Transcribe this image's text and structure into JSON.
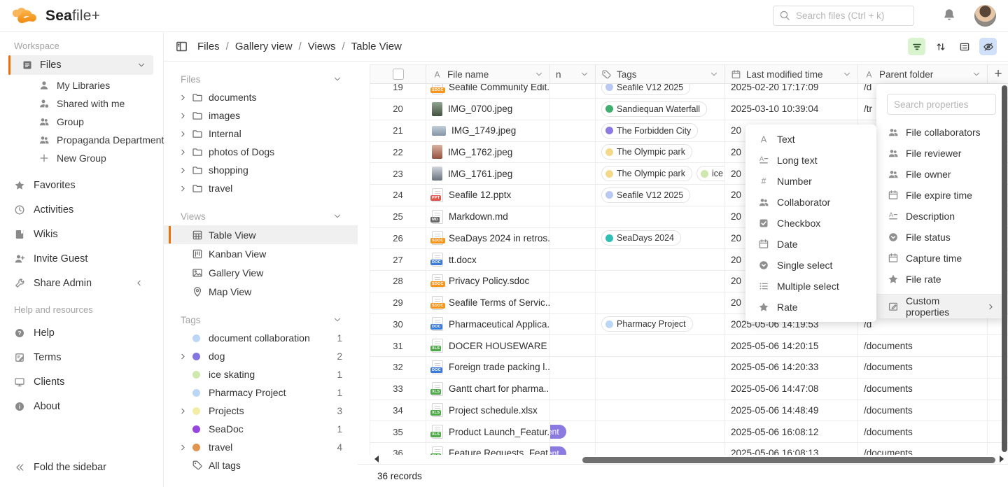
{
  "colors": {
    "accent": "#ED7109",
    "select_pill": "#8b7ae0",
    "filter_active_bg": "#d9f3cf",
    "eye_active_bg": "#cfe0f8"
  },
  "topbar": {
    "logo_bold": "Sea",
    "logo_rest": "file+",
    "search_placeholder": "Search files (Ctrl + k)"
  },
  "sidebar": {
    "workspace_label": "Workspace",
    "files_item": {
      "label": "Files"
    },
    "files_children": [
      {
        "label": "My Libraries",
        "icon": "person"
      },
      {
        "label": "Shared with me",
        "icon": "person-share"
      },
      {
        "label": "Group",
        "icon": "people"
      },
      {
        "label": "Propaganda Department",
        "icon": "people"
      },
      {
        "label": "New Group",
        "icon": "plus"
      }
    ],
    "nav_items": [
      {
        "label": "Favorites",
        "icon": "star"
      },
      {
        "label": "Activities",
        "icon": "clock"
      },
      {
        "label": "Wikis",
        "icon": "book"
      },
      {
        "label": "Invite Guest",
        "icon": "person-plus"
      },
      {
        "label": "Share Admin",
        "icon": "wrench",
        "collapse_chevron": true
      }
    ],
    "help_label": "Help and resources",
    "help_items": [
      {
        "label": "Help",
        "icon": "question"
      },
      {
        "label": "Terms",
        "icon": "terms"
      },
      {
        "label": "Clients",
        "icon": "monitor"
      },
      {
        "label": "About",
        "icon": "info"
      }
    ],
    "fold_label": "Fold the sidebar"
  },
  "breadcrumb": {
    "items": [
      "Files",
      "Gallery view",
      "Views",
      "Table View"
    ]
  },
  "tree_panel": {
    "files_section": "Files",
    "folders": [
      "documents",
      "images",
      "Internal",
      "photos of Dogs",
      "shopping",
      "travel"
    ],
    "views_section": "Views",
    "views": [
      {
        "label": "Table View",
        "icon": "table",
        "active": true
      },
      {
        "label": "Kanban View",
        "icon": "kanban",
        "active": false
      },
      {
        "label": "Gallery View",
        "icon": "gallery",
        "active": false
      },
      {
        "label": "Map View",
        "icon": "map-pin",
        "active": false
      }
    ],
    "tags_section": "Tags",
    "tags": [
      {
        "label": "document collaboration",
        "count": "1",
        "color": "#bcd7f5",
        "expandable": false
      },
      {
        "label": "dog",
        "count": "2",
        "color": "#8476e0",
        "expandable": true
      },
      {
        "label": "ice skating",
        "count": "1",
        "color": "#cfe8ad",
        "expandable": false
      },
      {
        "label": "Pharmacy Project",
        "count": "1",
        "color": "#bcd7f5",
        "expandable": false
      },
      {
        "label": "Projects",
        "count": "3",
        "color": "#f3eda6",
        "expandable": true
      },
      {
        "label": "SeaDoc",
        "count": "1",
        "color": "#9747e0",
        "expandable": false
      },
      {
        "label": "travel",
        "count": "4",
        "color": "#e2954f",
        "expandable": true
      }
    ],
    "all_tags_label": "All tags"
  },
  "table": {
    "columns": {
      "name": "File name",
      "n": "n",
      "tags": "Tags",
      "modified": "Last modified time",
      "parent": "Parent folder"
    },
    "rows": [
      {
        "num": "19",
        "name": "Seafile Community Edit...",
        "icon": "sdoc",
        "tags": [
          {
            "label": "Seafile V12 2025",
            "color": "#b9c9f2"
          }
        ],
        "select": "",
        "modified": "2025-02-20 17:17:09",
        "parent": "/d",
        "clip": "top"
      },
      {
        "num": "20",
        "name": "IMG_0700.jpeg",
        "icon": "img-waterfall",
        "tags": [
          {
            "label": "Sandiequan Waterfall",
            "color": "#3fae6e"
          }
        ],
        "select": "",
        "modified": "2025-03-10 10:39:04",
        "parent": "/tr",
        "clip": ""
      },
      {
        "num": "21",
        "name": "IMG_1749.jpeg",
        "icon": "img-landscape",
        "tags": [
          {
            "label": "The Forbidden City",
            "color": "#8b7ae0"
          }
        ],
        "select": "",
        "modified": "20",
        "parent": "",
        "clip": ""
      },
      {
        "num": "22",
        "name": "IMG_1762.jpeg",
        "icon": "img-person",
        "tags": [
          {
            "label": "The Olympic park",
            "color": "#f5d98b"
          }
        ],
        "select": "",
        "modified": "20",
        "parent": "",
        "clip": ""
      },
      {
        "num": "23",
        "name": "IMG_1761.jpeg",
        "icon": "img-ice",
        "tags": [
          {
            "label": "The Olympic park",
            "color": "#f5d98b"
          },
          {
            "label": "ice skating",
            "color": "#cfe8ad"
          }
        ],
        "select": "",
        "modified": "20",
        "parent": "",
        "clip": ""
      },
      {
        "num": "24",
        "name": "Seafile 12.pptx",
        "icon": "pptx",
        "tags": [
          {
            "label": "Seafile V12 2025",
            "color": "#b9c9f2"
          }
        ],
        "select": "",
        "modified": "20",
        "parent": "",
        "clip": ""
      },
      {
        "num": "25",
        "name": "Markdown.md",
        "icon": "md",
        "tags": [],
        "select": "",
        "modified": "20",
        "parent": "",
        "clip": ""
      },
      {
        "num": "26",
        "name": "SeaDays 2024 in retros...",
        "icon": "sdoc",
        "tags": [
          {
            "label": "SeaDays 2024",
            "color": "#2fbfb3"
          }
        ],
        "select": "",
        "modified": "20",
        "parent": "",
        "clip": ""
      },
      {
        "num": "27",
        "name": "tt.docx",
        "icon": "docx",
        "tags": [],
        "select": "",
        "modified": "20",
        "parent": "",
        "clip": ""
      },
      {
        "num": "28",
        "name": "Privacy Policy.sdoc",
        "icon": "sdoc",
        "tags": [],
        "select": "",
        "modified": "20",
        "parent": "",
        "clip": ""
      },
      {
        "num": "29",
        "name": "Seafile Terms of Servic...",
        "icon": "sdoc",
        "tags": [],
        "select": "",
        "modified": "20",
        "parent": "",
        "clip": ""
      },
      {
        "num": "30",
        "name": "Pharmaceutical Applica...",
        "icon": "docx",
        "tags": [
          {
            "label": "Pharmacy Project",
            "color": "#bcd7f5"
          }
        ],
        "select": "",
        "modified": "2025-05-06 14:19:53",
        "parent": "/d",
        "clip": ""
      },
      {
        "num": "31",
        "name": "DOCER HOUSEWARE C...",
        "icon": "xlsx",
        "tags": [],
        "select": "",
        "modified": "2025-05-06 14:20:15",
        "parent": "/documents",
        "clip": ""
      },
      {
        "num": "32",
        "name": "Foreign trade packing l...",
        "icon": "docx",
        "tags": [],
        "select": "",
        "modified": "2025-05-06 14:20:33",
        "parent": "/documents",
        "clip": ""
      },
      {
        "num": "33",
        "name": "Gantt chart for pharma...",
        "icon": "xlsx",
        "tags": [],
        "select": "",
        "modified": "2025-05-06 14:47:08",
        "parent": "/documents",
        "clip": ""
      },
      {
        "num": "34",
        "name": "Project schedule.xlsx",
        "icon": "xlsx",
        "tags": [],
        "select": "",
        "modified": "2025-05-06 14:48:49",
        "parent": "/documents",
        "clip": ""
      },
      {
        "num": "35",
        "name": "Product Launch_Featur...",
        "icon": "xlsx",
        "tags": [],
        "select": "ent",
        "modified": "2025-05-06 16:08:12",
        "parent": "/documents",
        "clip": ""
      },
      {
        "num": "36",
        "name": "Feature Requests_Feat...",
        "icon": "xlsx",
        "tags": [],
        "select": "ent",
        "modified": "2025-05-06 16:08:13",
        "parent": "/documents",
        "clip": "bottom"
      }
    ],
    "footer": "36 records",
    "add_column_label": "+"
  },
  "column_type_menu": {
    "items": [
      {
        "label": "Text",
        "icon": "text"
      },
      {
        "label": "Long text",
        "icon": "long-text"
      },
      {
        "label": "Number",
        "icon": "hash"
      },
      {
        "label": "Collaborator",
        "icon": "people"
      },
      {
        "label": "Checkbox",
        "icon": "checkbox"
      },
      {
        "label": "Date",
        "icon": "calendar"
      },
      {
        "label": "Single select",
        "icon": "single-select"
      },
      {
        "label": "Multiple select",
        "icon": "multi-select"
      },
      {
        "label": "Rate",
        "icon": "star"
      }
    ]
  },
  "properties_menu": {
    "search_placeholder": "Search properties",
    "items": [
      {
        "label": "File collaborators",
        "icon": "people"
      },
      {
        "label": "File reviewer",
        "icon": "people"
      },
      {
        "label": "File owner",
        "icon": "people"
      },
      {
        "label": "File expire time",
        "icon": "calendar"
      },
      {
        "label": "Description",
        "icon": "long-text"
      },
      {
        "label": "File status",
        "icon": "single-select"
      },
      {
        "label": "Capture time",
        "icon": "calendar"
      },
      {
        "label": "File rate",
        "icon": "star"
      }
    ],
    "footer_item": {
      "label": "Custom properties",
      "icon": "pencil-square"
    }
  }
}
